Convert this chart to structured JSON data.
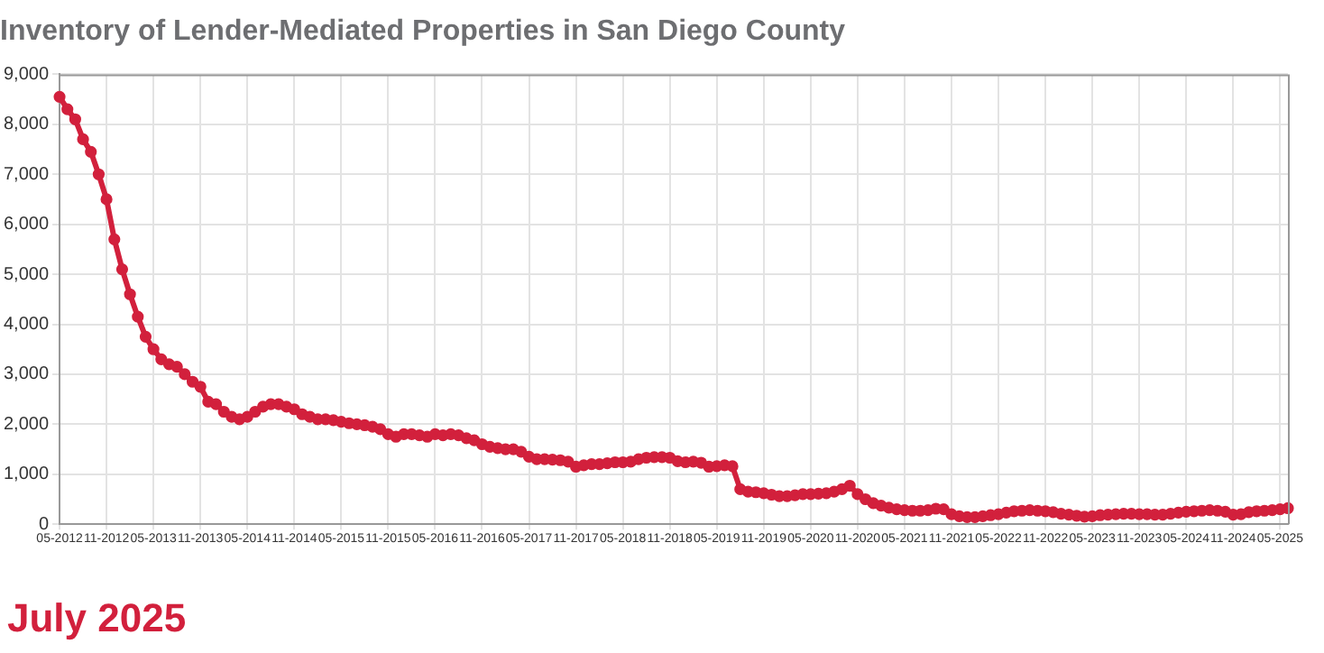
{
  "chart_data": {
    "type": "line",
    "title": "Inventory of Lender-Mediated Properties in San Diego County",
    "annotations": [
      "July 2025"
    ],
    "categories": [
      "05-2012",
      null,
      null,
      null,
      null,
      null,
      "11-2012",
      null,
      null,
      null,
      null,
      null,
      "05-2013",
      null,
      null,
      null,
      null,
      null,
      "11-2013",
      null,
      null,
      null,
      null,
      null,
      "05-2014",
      null,
      null,
      null,
      null,
      null,
      "11-2014",
      null,
      null,
      null,
      null,
      null,
      "05-2015",
      null,
      null,
      null,
      null,
      null,
      "11-2015",
      null,
      null,
      null,
      null,
      null,
      "05-2016",
      null,
      null,
      null,
      null,
      null,
      "11-2016",
      null,
      null,
      null,
      null,
      null,
      "05-2017",
      null,
      null,
      null,
      null,
      null,
      "11-2017",
      null,
      null,
      null,
      null,
      null,
      "05-2018",
      null,
      null,
      null,
      null,
      null,
      "11-2018",
      null,
      null,
      null,
      null,
      null,
      "05-2019",
      null,
      null,
      null,
      null,
      null,
      "11-2019",
      null,
      null,
      null,
      null,
      null,
      "05-2020",
      null,
      null,
      null,
      null,
      null,
      "11-2020",
      null,
      null,
      null,
      null,
      null,
      "05-2021",
      null,
      null,
      null,
      null,
      null,
      "11-2021",
      null,
      null,
      null,
      null,
      null,
      "05-2022",
      null,
      null,
      null,
      null,
      null,
      "11-2022",
      null,
      null,
      null,
      null,
      null,
      "05-2023",
      null,
      null,
      null,
      null,
      null,
      "11-2023",
      null,
      null,
      null,
      null,
      null,
      "05-2024",
      null,
      null,
      null,
      null,
      null,
      "11-2024",
      null,
      null,
      null,
      null,
      null,
      "05-2025",
      null
    ],
    "series": [
      {
        "color": "#d2203c",
        "values": [
          8550,
          8300,
          8100,
          7700,
          7450,
          7000,
          6500,
          5700,
          5100,
          4600,
          4150,
          3750,
          3500,
          3300,
          3200,
          3150,
          3000,
          2850,
          2750,
          2450,
          2400,
          2250,
          2150,
          2100,
          2150,
          2250,
          2350,
          2400,
          2400,
          2350,
          2300,
          2200,
          2150,
          2100,
          2100,
          2080,
          2050,
          2020,
          2000,
          1980,
          1950,
          1900,
          1800,
          1750,
          1800,
          1800,
          1780,
          1750,
          1800,
          1780,
          1800,
          1780,
          1720,
          1680,
          1600,
          1550,
          1520,
          1500,
          1500,
          1450,
          1350,
          1300,
          1300,
          1290,
          1280,
          1250,
          1150,
          1180,
          1200,
          1200,
          1220,
          1240,
          1240,
          1250,
          1300,
          1330,
          1340,
          1340,
          1330,
          1260,
          1240,
          1250,
          1230,
          1150,
          1160,
          1180,
          1160,
          700,
          650,
          640,
          620,
          590,
          560,
          560,
          580,
          600,
          600,
          610,
          620,
          650,
          700,
          770,
          600,
          500,
          420,
          370,
          330,
          300,
          280,
          270,
          270,
          280,
          310,
          300,
          200,
          160,
          140,
          140,
          160,
          180,
          200,
          230,
          260,
          270,
          280,
          270,
          260,
          240,
          210,
          190,
          170,
          150,
          160,
          180,
          190,
          200,
          210,
          210,
          200,
          200,
          190,
          190,
          210,
          230,
          250,
          260,
          270,
          280,
          270,
          250,
          190,
          200,
          240,
          260,
          270,
          280,
          300,
          320
        ]
      }
    ],
    "ylim": [
      0,
      9000
    ],
    "yticks": [
      {
        "value": 0,
        "label": "0"
      },
      {
        "value": 1000,
        "label": "1,000"
      },
      {
        "value": 2000,
        "label": "2,000"
      },
      {
        "value": 3000,
        "label": "3,000"
      },
      {
        "value": 4000,
        "label": "4,000"
      },
      {
        "value": 5000,
        "label": "5,000"
      },
      {
        "value": 6000,
        "label": "6,000"
      },
      {
        "value": 7000,
        "label": "7,000"
      },
      {
        "value": 8000,
        "label": "8,000"
      },
      {
        "value": 9000,
        "label": "9,000"
      }
    ],
    "grid": true,
    "marker": "circle",
    "line_style": "solid"
  }
}
